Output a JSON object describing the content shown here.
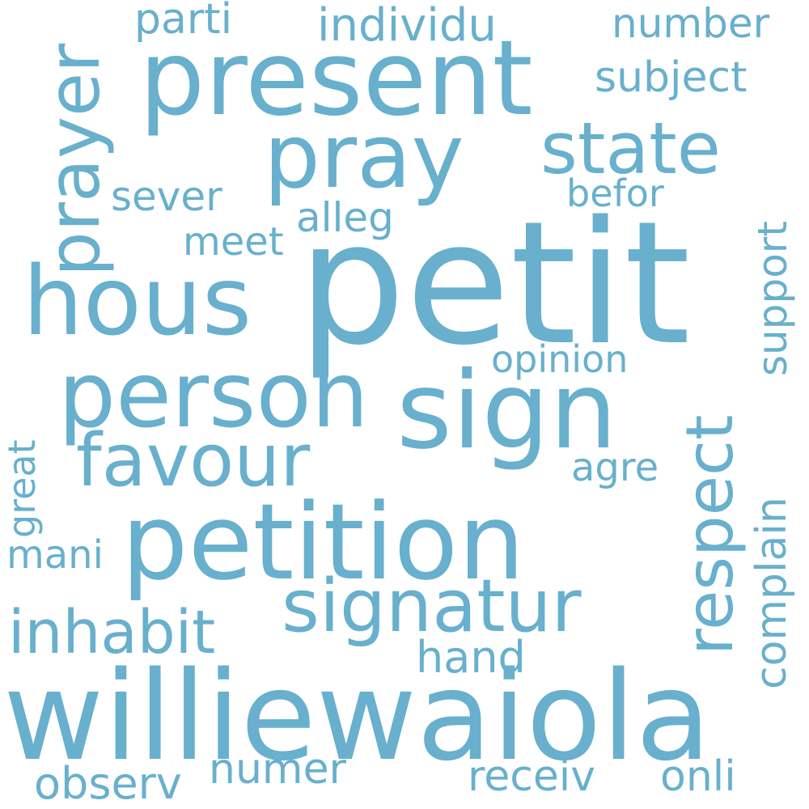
{
  "color": "#68b0cd",
  "words": {
    "petit": "petit",
    "williewaiola": "williewaiola",
    "petition": "petition",
    "present": "present",
    "sign": "sign",
    "pray": "pray",
    "person": "person",
    "hous": "hous",
    "state": "state",
    "favour": "favour",
    "signatur": "signatur",
    "prayer": "prayer",
    "respect": "respect",
    "inhabit": "inhabit",
    "subject": "subject",
    "individu": "individu",
    "number": "number",
    "parti": "parti",
    "sever": "sever",
    "befor": "befor",
    "alleg": "alleg",
    "meet": "meet",
    "support": "support",
    "opinion": "opinion",
    "agre": "agre",
    "complain": "complain",
    "great": "great",
    "mani": "mani",
    "hand": "hand",
    "observ": "observ",
    "numer": "numer",
    "receiv": "receiv",
    "onli": "onli"
  }
}
